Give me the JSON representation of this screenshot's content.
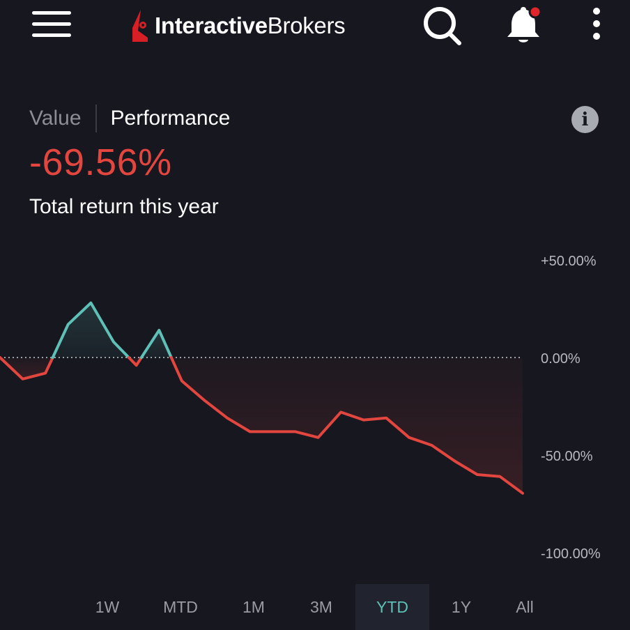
{
  "header": {
    "logo_bold": "Interactive",
    "logo_regular": "Brokers",
    "notification_dot_color": "#e0262b"
  },
  "view_tabs": [
    {
      "label": "Value",
      "active": false
    },
    {
      "label": "Performance",
      "active": true
    }
  ],
  "summary": {
    "return_value": "-69.56%",
    "return_label": "Total return this year",
    "negative_color": "#e2463f",
    "positive_color": "#5ec0b6"
  },
  "chart_data": {
    "type": "line",
    "y_unit": "percent",
    "ylim": [
      -100,
      50
    ],
    "y_ticks": [
      {
        "value": 50,
        "label": "+50.00%"
      },
      {
        "value": 0,
        "label": "0.00%"
      },
      {
        "value": -50,
        "label": "-50.00%"
      },
      {
        "value": -100,
        "label": "-100.00%"
      }
    ],
    "baseline": 0,
    "values": [
      0,
      -11,
      -8,
      17,
      28,
      8,
      -4,
      14,
      -12,
      -22,
      -31,
      -38,
      -38,
      -38,
      -41,
      -28,
      -32,
      -31,
      -41,
      -45,
      -53,
      -60,
      -61,
      -69.56
    ],
    "grid": false,
    "legend": "none"
  },
  "ranges": [
    {
      "label": "1W",
      "active": false
    },
    {
      "label": "MTD",
      "active": false
    },
    {
      "label": "1M",
      "active": false
    },
    {
      "label": "3M",
      "active": false
    },
    {
      "label": "YTD",
      "active": true
    },
    {
      "label": "1Y",
      "active": false
    },
    {
      "label": "All",
      "active": false
    }
  ]
}
